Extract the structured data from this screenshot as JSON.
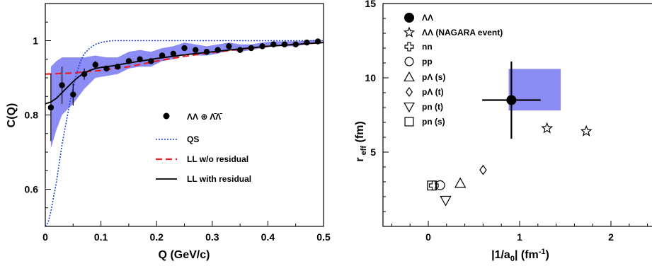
{
  "chart_data": [
    {
      "type": "line",
      "title": "",
      "xlabel": "Q (GeV/c)",
      "ylabel": "C(Q)",
      "xlim": [
        0,
        0.5
      ],
      "ylim": [
        0.5,
        1.1
      ],
      "xticks": [
        "0",
        "0.1",
        "0.2",
        "0.3",
        "0.4",
        "0.5"
      ],
      "yticks": [
        "0.6",
        "0.8",
        "1"
      ],
      "grid": false,
      "legend_position": "center-right",
      "legend": [
        {
          "label": "ΛΛ ⊕ Λ̄Λ̄",
          "marker": "filled-circle",
          "color": "#000000"
        },
        {
          "label": "QS",
          "style": "dotted",
          "color": "#1f3fd6"
        },
        {
          "label": "LL w/o residual",
          "style": "dashed",
          "color": "#e8202a"
        },
        {
          "label": "LL with residual",
          "style": "solid",
          "color": "#000000"
        }
      ],
      "band_color": "#8c8cf5",
      "data_points": [
        {
          "x": 0.01,
          "y": 0.82,
          "yerr": 0.09
        },
        {
          "x": 0.03,
          "y": 0.88,
          "yerr": 0.05
        },
        {
          "x": 0.05,
          "y": 0.855,
          "yerr": 0.03
        },
        {
          "x": 0.07,
          "y": 0.91,
          "yerr": 0.015
        },
        {
          "x": 0.09,
          "y": 0.935,
          "yerr": 0.01
        },
        {
          "x": 0.11,
          "y": 0.925,
          "yerr": 0.005
        },
        {
          "x": 0.13,
          "y": 0.93,
          "yerr": 0.005
        },
        {
          "x": 0.15,
          "y": 0.945,
          "yerr": 0.005
        },
        {
          "x": 0.17,
          "y": 0.95,
          "yerr": 0.005
        },
        {
          "x": 0.19,
          "y": 0.945,
          "yerr": 0.005
        },
        {
          "x": 0.21,
          "y": 0.96,
          "yerr": 0.005
        },
        {
          "x": 0.23,
          "y": 0.965,
          "yerr": 0.005
        },
        {
          "x": 0.25,
          "y": 0.98,
          "yerr": 0.005
        },
        {
          "x": 0.27,
          "y": 0.975,
          "yerr": 0.005
        },
        {
          "x": 0.29,
          "y": 0.97,
          "yerr": 0.005
        },
        {
          "x": 0.31,
          "y": 0.975,
          "yerr": 0.005
        },
        {
          "x": 0.33,
          "y": 0.985,
          "yerr": 0.005
        },
        {
          "x": 0.35,
          "y": 0.975,
          "yerr": 0.005
        },
        {
          "x": 0.37,
          "y": 0.98,
          "yerr": 0.005
        },
        {
          "x": 0.39,
          "y": 0.985,
          "yerr": 0.005
        },
        {
          "x": 0.41,
          "y": 0.99,
          "yerr": 0.005
        },
        {
          "x": 0.43,
          "y": 0.99,
          "yerr": 0.005
        },
        {
          "x": 0.45,
          "y": 0.99,
          "yerr": 0.005
        },
        {
          "x": 0.47,
          "y": 0.995,
          "yerr": 0.005
        },
        {
          "x": 0.49,
          "y": 0.998,
          "yerr": 0.005
        }
      ],
      "band": {
        "x": [
          0.01,
          0.02,
          0.03,
          0.05,
          0.07,
          0.09,
          0.11,
          0.13,
          0.15,
          0.17,
          0.19,
          0.21,
          0.23,
          0.25,
          0.27,
          0.29,
          0.31,
          0.33,
          0.35,
          0.37,
          0.39,
          0.41,
          0.43,
          0.45,
          0.47,
          0.49
        ],
        "lower": [
          0.71,
          0.76,
          0.8,
          0.83,
          0.87,
          0.9,
          0.905,
          0.91,
          0.925,
          0.93,
          0.93,
          0.945,
          0.95,
          0.965,
          0.96,
          0.96,
          0.965,
          0.975,
          0.97,
          0.975,
          0.98,
          0.985,
          0.985,
          0.985,
          0.99,
          0.993
        ],
        "upper": [
          0.93,
          0.945,
          0.955,
          0.955,
          0.955,
          0.96,
          0.955,
          0.955,
          0.97,
          0.975,
          0.97,
          0.98,
          0.985,
          0.995,
          0.99,
          0.985,
          0.99,
          0.995,
          0.99,
          0.99,
          0.995,
          0.998,
          0.998,
          0.998,
          1.0,
          1.003
        ]
      },
      "series": [
        {
          "x": [
            0.0,
            0.005,
            0.01,
            0.015,
            0.02,
            0.025,
            0.03,
            0.035,
            0.04,
            0.045,
            0.05,
            0.055,
            0.06,
            0.065,
            0.07,
            0.08,
            0.09,
            0.1,
            0.11,
            0.12,
            0.14,
            0.16,
            0.2,
            0.3,
            0.4,
            0.5
          ],
          "y": [
            0.5,
            0.51,
            0.54,
            0.58,
            0.62,
            0.67,
            0.72,
            0.76,
            0.8,
            0.84,
            0.875,
            0.905,
            0.93,
            0.95,
            0.965,
            0.98,
            0.99,
            0.995,
            0.998,
            1.0,
            1.0,
            1.0,
            1.0,
            1.0,
            1.0,
            1.0
          ]
        },
        {
          "x": [
            0.0,
            0.05,
            0.1,
            0.15,
            0.2,
            0.25,
            0.3,
            0.35,
            0.4,
            0.45,
            0.5
          ],
          "y": [
            0.91,
            0.913,
            0.92,
            0.93,
            0.945,
            0.958,
            0.968,
            0.977,
            0.985,
            0.99,
            0.995
          ]
        },
        {
          "x": [
            0.0,
            0.01,
            0.02,
            0.03,
            0.04,
            0.05,
            0.06,
            0.07,
            0.08,
            0.09,
            0.1,
            0.12,
            0.15,
            0.2,
            0.25,
            0.3,
            0.35,
            0.4,
            0.45,
            0.5
          ],
          "y": [
            0.83,
            0.835,
            0.845,
            0.86,
            0.875,
            0.89,
            0.903,
            0.913,
            0.92,
            0.925,
            0.928,
            0.932,
            0.94,
            0.952,
            0.962,
            0.97,
            0.978,
            0.985,
            0.99,
            0.995
          ]
        }
      ]
    },
    {
      "type": "scatter",
      "title": "",
      "xlabel": "|1/a0| (fm-1)",
      "ylabel": "r eff (fm)",
      "xlim": [
        -0.5,
        2.5
      ],
      "ylim": [
        0,
        15
      ],
      "xticks": [
        "0",
        "1",
        "2"
      ],
      "yticks": [
        "5",
        "10",
        "15"
      ],
      "grid": false,
      "legend_position": "top-left",
      "box_color": "#8c8cf5",
      "box": {
        "x0": 0.88,
        "x1": 1.45,
        "y0": 7.8,
        "y1": 10.6
      },
      "legend": [
        {
          "label": "ΛΛ",
          "marker": "filled-circle"
        },
        {
          "label": "ΛΛ (NAGARA event)",
          "marker": "star"
        },
        {
          "label": "nn",
          "marker": "cross"
        },
        {
          "label": "pp",
          "marker": "circle"
        },
        {
          "label": "pΛ (s)",
          "marker": "triangle-up"
        },
        {
          "label": "pΛ (t)",
          "marker": "diamond"
        },
        {
          "label": "pn (t)",
          "marker": "triangle-down"
        },
        {
          "label": "pn (s)",
          "marker": "square"
        }
      ],
      "points": [
        {
          "name": "ΛΛ",
          "marker": "filled-circle",
          "x": 0.91,
          "y": 8.5,
          "xerr": 0.32,
          "yerr": 2.6
        },
        {
          "name": "ΛΛ (NAGARA event)",
          "marker": "star",
          "x": 1.3,
          "y": 6.6
        },
        {
          "name": "ΛΛ (NAGARA event)",
          "marker": "star",
          "x": 1.73,
          "y": 6.4
        },
        {
          "name": "nn",
          "marker": "cross",
          "x": 0.06,
          "y": 2.75
        },
        {
          "name": "pp",
          "marker": "circle",
          "x": 0.13,
          "y": 2.77
        },
        {
          "name": "pΛ (s)",
          "marker": "triangle-up",
          "x": 0.35,
          "y": 2.9
        },
        {
          "name": "pΛ (t)",
          "marker": "diamond",
          "x": 0.6,
          "y": 3.8
        },
        {
          "name": "pn (t)",
          "marker": "triangle-down",
          "x": 0.19,
          "y": 1.75
        },
        {
          "name": "pn (s)",
          "marker": "square",
          "x": 0.04,
          "y": 2.75
        }
      ]
    }
  ]
}
